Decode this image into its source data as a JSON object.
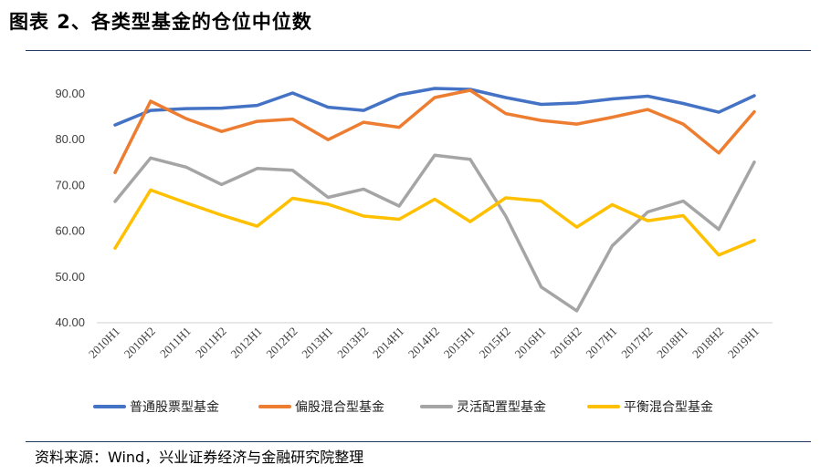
{
  "header": {
    "title": "图表 2、各类型基金的仓位中位数"
  },
  "footer": {
    "source": "资料来源：Wind，兴业证券经济与金融研究院整理"
  },
  "chart_data": {
    "type": "line",
    "title": "",
    "xlabel": "",
    "ylabel": "",
    "ylim": [
      40,
      90
    ],
    "yticks": [
      "40.00",
      "50.00",
      "60.00",
      "70.00",
      "80.00",
      "90.00"
    ],
    "grid": false,
    "legend_position": "bottom",
    "categories": [
      "2010H1",
      "2010H2",
      "2011H1",
      "2011H2",
      "2012H1",
      "2012H2",
      "2013H1",
      "2013H2",
      "2014H1",
      "2014H2",
      "2015H1",
      "2015H2",
      "2016H1",
      "2016H2",
      "2017H1",
      "2017H2",
      "2018H1",
      "2018H2",
      "2019H1"
    ],
    "series": [
      {
        "name": "普通股票型基金",
        "color": "#4472c4",
        "values": [
          83.2,
          86.4,
          86.8,
          86.9,
          87.5,
          90.2,
          87.1,
          86.4,
          89.8,
          91.2,
          91.0,
          89.2,
          87.7,
          88.0,
          88.9,
          89.5,
          87.9,
          86.0,
          89.6
        ]
      },
      {
        "name": "偏股混合型基金",
        "color": "#ed7d31",
        "values": [
          72.8,
          88.4,
          84.6,
          81.8,
          84.0,
          84.5,
          80.0,
          83.8,
          82.7,
          89.2,
          90.8,
          85.7,
          84.2,
          83.4,
          84.9,
          86.6,
          83.4,
          77.1,
          86.1
        ]
      },
      {
        "name": "灵活配置型基金",
        "color": "#a5a5a5",
        "values": [
          66.5,
          76.0,
          74.0,
          70.2,
          73.7,
          73.3,
          67.4,
          69.2,
          65.5,
          76.6,
          75.7,
          63.3,
          47.8,
          42.6,
          56.8,
          64.2,
          66.6,
          60.4,
          75.1
        ]
      },
      {
        "name": "平衡混合型基金",
        "color": "#ffc000",
        "values": [
          56.3,
          69.0,
          66.2,
          63.5,
          61.1,
          67.2,
          65.9,
          63.3,
          62.6,
          67.0,
          62.1,
          67.3,
          66.6,
          60.9,
          65.8,
          62.3,
          63.4,
          54.8,
          58.0
        ]
      }
    ]
  }
}
